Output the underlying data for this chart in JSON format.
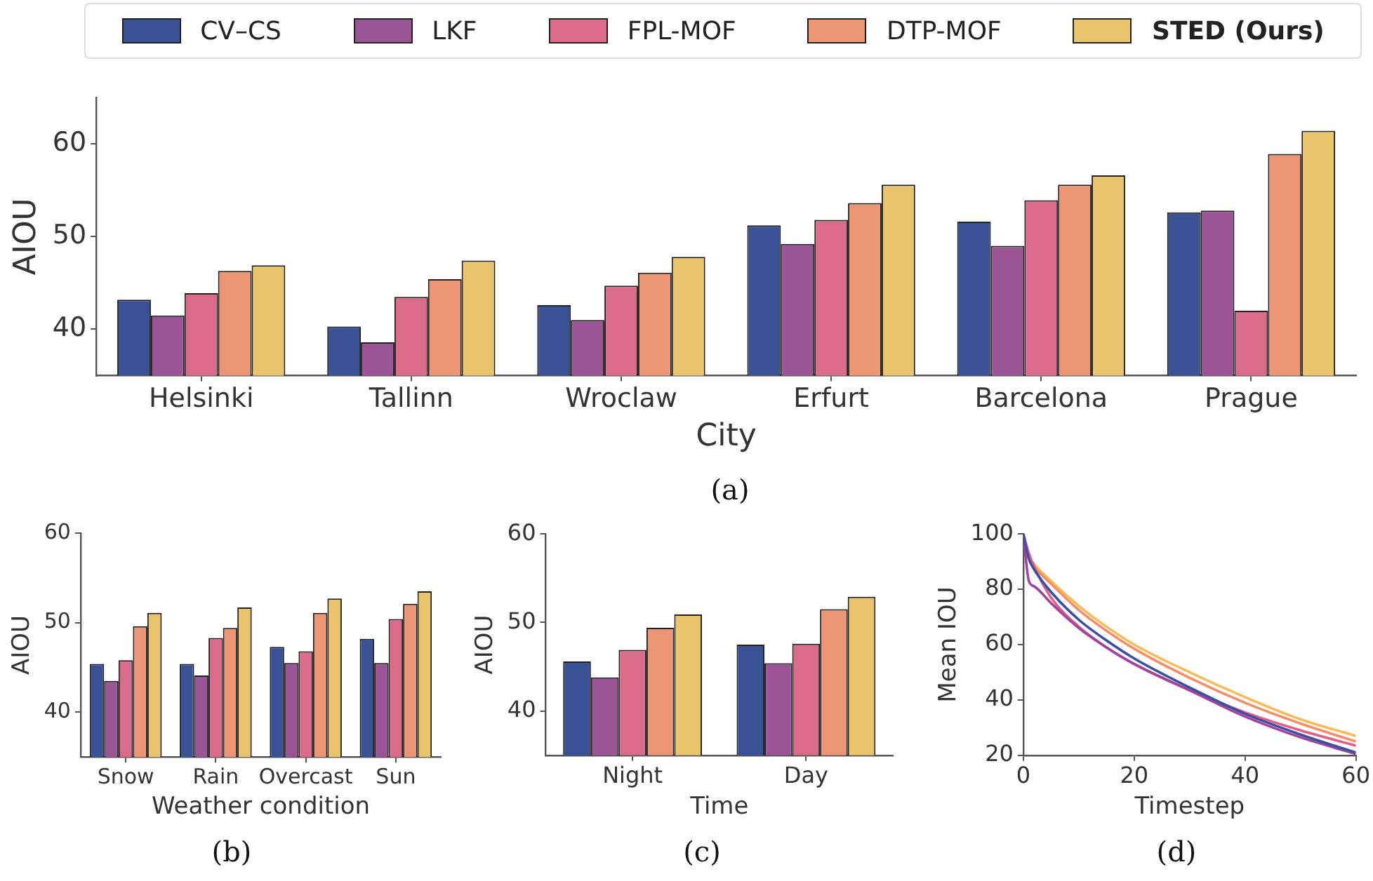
{
  "chart_data": [
    {
      "type": "bar",
      "xlabel": "City",
      "ylabel": "AIOU",
      "categories": [
        "Helsinki",
        "Tallinn",
        "Wroclaw",
        "Erfurt",
        "Barcelona",
        "Prague"
      ],
      "ylim": [
        35,
        65
      ],
      "yticks": [
        40,
        50,
        60
      ],
      "grid": false,
      "legend": "top",
      "annotations": [
        "(a)"
      ],
      "series": [
        {
          "name": "CV–CS",
          "color": "#3b5196",
          "values": [
            43.2,
            40.3,
            42.6,
            51.2,
            51.6,
            52.6
          ]
        },
        {
          "name": "LKF",
          "color": "#9b5597",
          "values": [
            41.5,
            38.6,
            41.0,
            49.2,
            49.0,
            52.8
          ]
        },
        {
          "name": "FPL-MOF",
          "color": "#db6b8a",
          "values": [
            43.9,
            43.5,
            44.7,
            51.8,
            53.9,
            42.0
          ]
        },
        {
          "name": "DTP-MOF",
          "color": "#ec9676",
          "values": [
            46.3,
            45.4,
            46.1,
            53.6,
            55.6,
            58.9
          ]
        },
        {
          "name": "STED (Ours)",
          "color": "#e9c46c",
          "values": [
            46.9,
            47.4,
            47.8,
            55.6,
            56.6,
            61.4
          ]
        }
      ]
    },
    {
      "type": "bar",
      "xlabel": "Weather condition",
      "ylabel": "AIOU",
      "categories": [
        "Snow",
        "Rain",
        "Overcast",
        "Sun"
      ],
      "ylim": [
        35,
        60
      ],
      "yticks": [
        40,
        50,
        60
      ],
      "grid": false,
      "annotations": [
        "(b)"
      ],
      "series": [
        {
          "color": "#3b5196",
          "values": [
            45.4,
            45.4,
            47.3,
            48.2
          ]
        },
        {
          "color": "#9b5597",
          "values": [
            43.5,
            44.1,
            45.5,
            45.5
          ]
        },
        {
          "color": "#db6b8a",
          "values": [
            45.8,
            48.3,
            46.8,
            50.4
          ]
        },
        {
          "color": "#ec9676",
          "values": [
            49.6,
            49.4,
            51.1,
            52.1
          ]
        },
        {
          "color": "#e9c46c",
          "values": [
            51.1,
            51.7,
            52.7,
            53.5
          ]
        }
      ]
    },
    {
      "type": "bar",
      "xlabel": "Time",
      "ylabel": "AIOU",
      "categories": [
        "Night",
        "Day"
      ],
      "ylim": [
        35,
        60
      ],
      "yticks": [
        40,
        50,
        60
      ],
      "grid": false,
      "annotations": [
        "(c)"
      ],
      "series": [
        {
          "color": "#3b5196",
          "values": [
            45.6,
            47.5
          ]
        },
        {
          "color": "#9b5597",
          "values": [
            43.8,
            45.4
          ]
        },
        {
          "color": "#db6b8a",
          "values": [
            46.9,
            47.6
          ]
        },
        {
          "color": "#ec9676",
          "values": [
            49.4,
            51.5
          ]
        },
        {
          "color": "#e9c46c",
          "values": [
            50.9,
            52.9
          ]
        }
      ]
    },
    {
      "type": "line",
      "xlabel": "Timestep",
      "ylabel": "Mean IOU",
      "x": [
        0,
        1,
        2,
        5,
        10,
        15,
        20,
        30,
        40,
        50,
        60
      ],
      "xlim": [
        0,
        60
      ],
      "xticks": [
        0,
        20,
        40,
        60
      ],
      "ylim": [
        20,
        100
      ],
      "yticks": [
        20,
        40,
        60,
        80,
        100
      ],
      "grid": false,
      "marker": "none",
      "line_style": "solid",
      "annotations": [
        "(d)"
      ],
      "series": [
        {
          "color": "#3a4fa0",
          "values": [
            100,
            91,
            87,
            79,
            69,
            61.5,
            55,
            44.5,
            35,
            27.5,
            21
          ]
        },
        {
          "color": "#a0449e",
          "values": [
            100,
            83,
            81,
            75,
            66,
            59,
            53,
            43.5,
            34,
            26.5,
            20.5
          ]
        },
        {
          "color": "#e45c88",
          "values": [
            100,
            93,
            88,
            77,
            66.5,
            59,
            53,
            43.5,
            35.5,
            29,
            23.5
          ]
        },
        {
          "color": "#f28e6a",
          "values": [
            100,
            91,
            88,
            82,
            72.5,
            65,
            58.5,
            48,
            39,
            31.5,
            25
          ]
        },
        {
          "color": "#f8bb58",
          "values": [
            100,
            92,
            89,
            83,
            74,
            66.5,
            60,
            50,
            41,
            33,
            27
          ]
        }
      ]
    }
  ]
}
